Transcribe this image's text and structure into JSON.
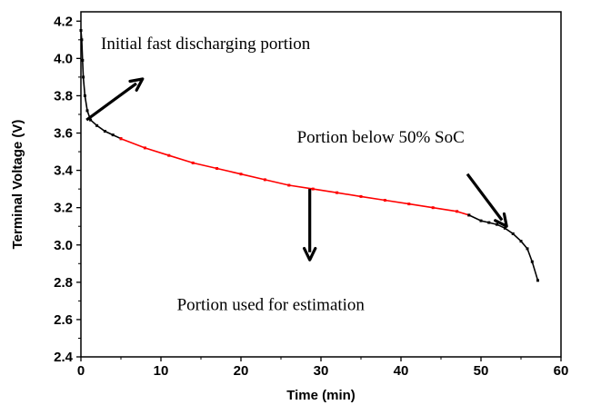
{
  "chart_data": {
    "type": "line",
    "title": "",
    "xlabel": "Time (min)",
    "ylabel": "Terminal Voltage (V)",
    "xlim": [
      0,
      60
    ],
    "ylim": [
      2.4,
      4.25
    ],
    "xticks": [
      0,
      10,
      20,
      30,
      40,
      50,
      60
    ],
    "yticks": [
      2.4,
      2.6,
      2.8,
      3.0,
      3.2,
      3.4,
      3.6,
      3.8,
      4.0,
      4.2
    ],
    "grid": false,
    "legend": "none",
    "colors": {
      "black_series": "#000000",
      "red_series": "#ff0000",
      "arrow": "#000000"
    },
    "series": [
      {
        "points": [
          [
            0,
            4.15
          ],
          [
            0.1,
            4.1
          ],
          [
            0.2,
            3.99
          ],
          [
            0.3,
            3.9
          ],
          [
            0.5,
            3.8
          ],
          [
            0.8,
            3.72
          ],
          [
            1.2,
            3.67
          ],
          [
            2,
            3.64
          ],
          [
            3,
            3.61
          ],
          [
            4,
            3.59
          ],
          [
            5,
            3.57
          ]
        ]
      },
      {
        "points": [
          [
            5,
            3.57
          ],
          [
            8,
            3.52
          ],
          [
            11,
            3.48
          ],
          [
            14,
            3.44
          ],
          [
            17,
            3.41
          ],
          [
            20,
            3.38
          ],
          [
            23,
            3.35
          ],
          [
            26,
            3.32
          ],
          [
            29,
            3.3
          ],
          [
            32,
            3.28
          ],
          [
            35,
            3.26
          ],
          [
            38,
            3.24
          ],
          [
            41,
            3.22
          ],
          [
            44,
            3.2
          ],
          [
            47,
            3.18
          ],
          [
            48.5,
            3.16
          ]
        ]
      },
      {
        "points": [
          [
            48.5,
            3.16
          ],
          [
            50,
            3.13
          ],
          [
            51,
            3.12
          ],
          [
            52,
            3.11
          ],
          [
            53,
            3.09
          ],
          [
            54,
            3.06
          ],
          [
            55,
            3.02
          ],
          [
            55.8,
            2.98
          ],
          [
            56.4,
            2.91
          ],
          [
            57.1,
            2.81
          ]
        ]
      }
    ],
    "annotations": [
      {
        "text": "Initial fast discharging portion",
        "at": [
          2.5,
          4.05
        ],
        "arrow_from": [
          0.7,
          3.67
        ],
        "arrow_to": [
          7.7,
          3.89
        ]
      },
      {
        "text": "Portion below 50% SoC",
        "at": [
          27,
          3.55
        ],
        "arrow_from": [
          48.3,
          3.38
        ],
        "arrow_to": [
          53.2,
          3.1
        ]
      },
      {
        "text": "Portion used for estimation",
        "at": [
          12,
          2.65
        ],
        "arrow_from": [
          28.6,
          3.3
        ],
        "arrow_to": [
          28.6,
          2.92
        ]
      }
    ]
  }
}
